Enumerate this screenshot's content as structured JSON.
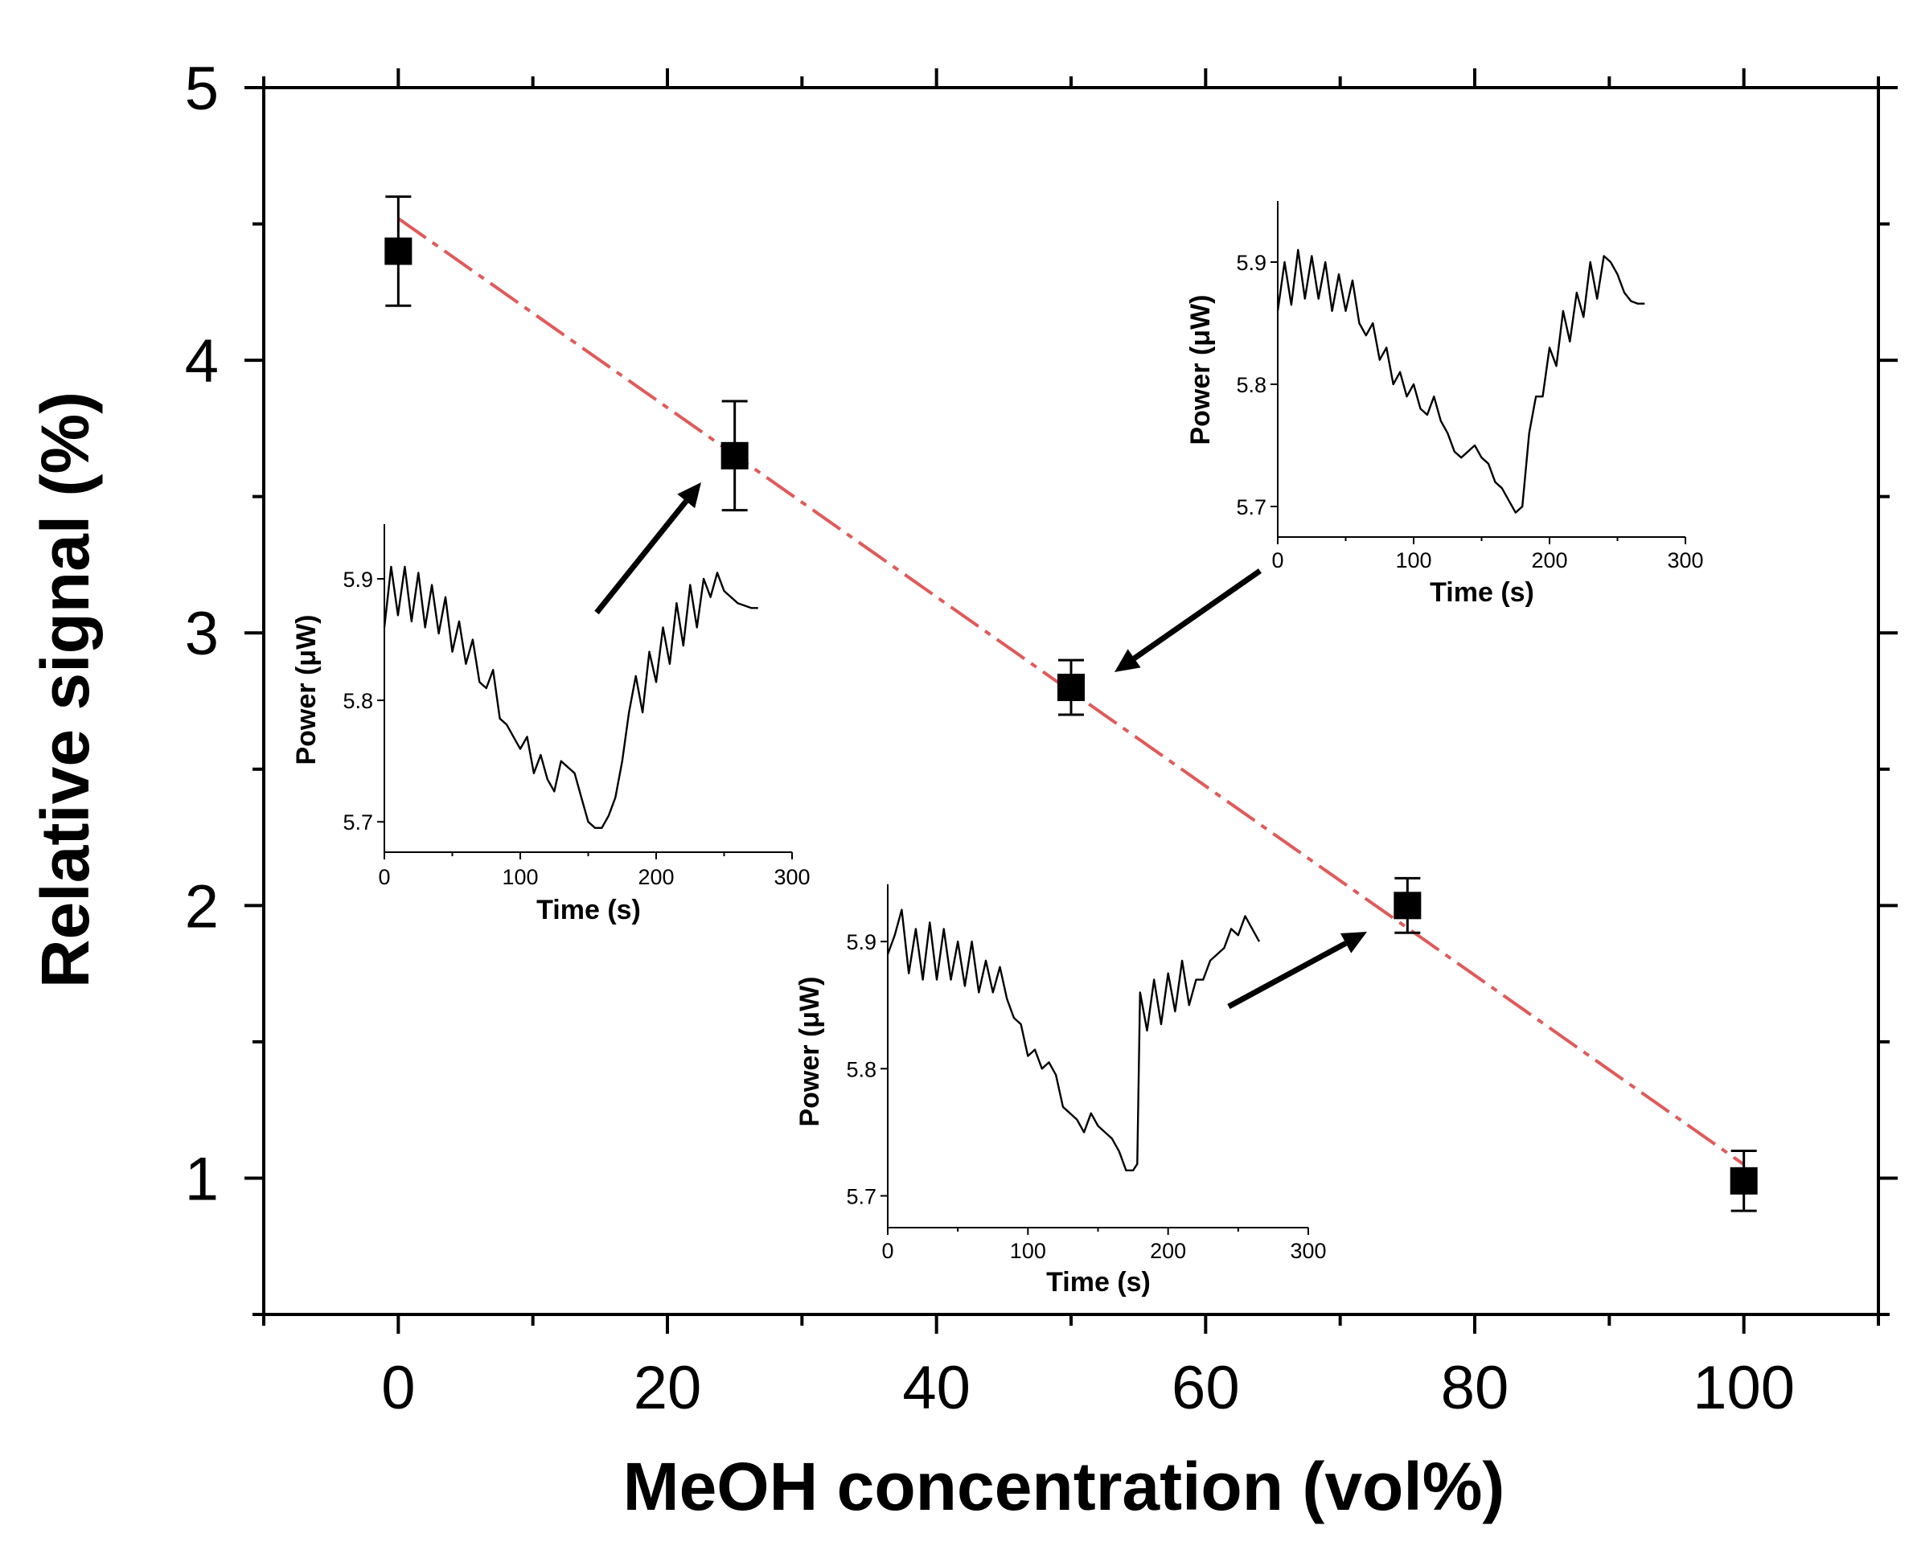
{
  "chart_data": [
    {
      "type": "scatter",
      "xlabel": "MeOH concentration (vol%)",
      "ylabel": "Relative signal (%)",
      "xlim": [
        -10,
        110
      ],
      "ylim": [
        0.5,
        5
      ],
      "xticks": [
        "0",
        "20",
        "40",
        "60",
        "80",
        "100"
      ],
      "yticks": [
        "1",
        "2",
        "3",
        "4",
        "5"
      ],
      "grid": false,
      "series": [
        {
          "x": [
            0,
            25,
            50,
            75,
            100
          ],
          "y": [
            4.4,
            3.65,
            2.8,
            2.0,
            0.99
          ],
          "yerr": [
            0.2,
            0.2,
            0.1,
            0.1,
            0.11
          ],
          "marker": "square",
          "color": "#000000"
        }
      ],
      "fit_line": {
        "x": [
          0,
          100
        ],
        "y": [
          4.52,
          1.05
        ],
        "color": "#e05a5a",
        "style": "dashed"
      },
      "annotations": [
        {
          "arrow_to_x": 25
        },
        {
          "arrow_to_x": 50
        },
        {
          "arrow_to_x": 75
        }
      ]
    },
    {
      "type": "line",
      "inset_for_x": 25,
      "xlabel": "Time (s)",
      "ylabel": "Power (μW)",
      "xlim": [
        0,
        300
      ],
      "ylim": [
        5.675,
        5.945
      ],
      "xticks": [
        "0",
        "100",
        "200",
        "300"
      ],
      "yticks": [
        "5.7",
        "5.8",
        "5.9"
      ],
      "x": [
        0,
        5,
        10,
        15,
        20,
        25,
        30,
        35,
        40,
        45,
        50,
        55,
        60,
        65,
        70,
        75,
        80,
        85,
        90,
        95,
        100,
        105,
        110,
        115,
        120,
        125,
        130,
        135,
        140,
        145,
        150,
        155,
        160,
        165,
        170,
        175,
        180,
        185,
        190,
        195,
        200,
        205,
        210,
        215,
        220,
        225,
        230,
        235,
        240,
        245,
        250,
        255,
        260,
        265,
        270,
        275
      ],
      "y": [
        5.86,
        5.91,
        5.87,
        5.91,
        5.865,
        5.905,
        5.86,
        5.895,
        5.855,
        5.885,
        5.84,
        5.865,
        5.83,
        5.85,
        5.815,
        5.81,
        5.825,
        5.785,
        5.78,
        5.77,
        5.76,
        5.77,
        5.74,
        5.755,
        5.735,
        5.725,
        5.75,
        5.745,
        5.74,
        5.72,
        5.7,
        5.695,
        5.695,
        5.705,
        5.72,
        5.75,
        5.79,
        5.82,
        5.79,
        5.84,
        5.815,
        5.86,
        5.83,
        5.88,
        5.845,
        5.895,
        5.86,
        5.9,
        5.885,
        5.905,
        5.89,
        5.885,
        5.88,
        5.878,
        5.876,
        5.876
      ]
    },
    {
      "type": "line",
      "inset_for_x": 50,
      "xlabel": "Time (s)",
      "ylabel": "Power (μW)",
      "xlim": [
        0,
        300
      ],
      "ylim": [
        5.675,
        5.95
      ],
      "xticks": [
        "0",
        "100",
        "200",
        "300"
      ],
      "yticks": [
        "5.7",
        "5.8",
        "5.9"
      ],
      "x": [
        0,
        5,
        10,
        15,
        20,
        25,
        30,
        35,
        40,
        45,
        50,
        55,
        60,
        65,
        70,
        75,
        80,
        85,
        90,
        95,
        100,
        105,
        110,
        115,
        120,
        125,
        130,
        135,
        140,
        145,
        150,
        155,
        160,
        165,
        170,
        175,
        180,
        185,
        190,
        195,
        200,
        205,
        210,
        215,
        220,
        225,
        230,
        235,
        240,
        245,
        250,
        255,
        260,
        265,
        270
      ],
      "y": [
        5.86,
        5.9,
        5.865,
        5.91,
        5.87,
        5.905,
        5.87,
        5.9,
        5.86,
        5.89,
        5.86,
        5.885,
        5.85,
        5.84,
        5.85,
        5.82,
        5.83,
        5.8,
        5.81,
        5.79,
        5.8,
        5.78,
        5.775,
        5.79,
        5.77,
        5.76,
        5.745,
        5.74,
        5.745,
        5.75,
        5.74,
        5.735,
        5.72,
        5.715,
        5.705,
        5.695,
        5.7,
        5.76,
        5.79,
        5.79,
        5.83,
        5.815,
        5.86,
        5.835,
        5.875,
        5.855,
        5.9,
        5.87,
        5.905,
        5.9,
        5.89,
        5.875,
        5.868,
        5.866,
        5.866
      ]
    },
    {
      "type": "line",
      "inset_for_x": 75,
      "xlabel": "Time (s)",
      "ylabel": "Power (μW)",
      "xlim": [
        0,
        300
      ],
      "ylim": [
        5.675,
        5.945
      ],
      "xticks": [
        "0",
        "100",
        "200",
        "300"
      ],
      "yticks": [
        "5.7",
        "5.8",
        "5.9"
      ],
      "x": [
        0,
        5,
        10,
        15,
        20,
        25,
        30,
        35,
        40,
        45,
        50,
        55,
        60,
        65,
        70,
        75,
        80,
        85,
        90,
        95,
        100,
        105,
        110,
        115,
        120,
        125,
        130,
        135,
        140,
        145,
        150,
        155,
        160,
        165,
        170,
        175,
        178,
        180,
        185,
        190,
        195,
        200,
        205,
        210,
        215,
        220,
        225,
        230,
        235,
        240,
        245,
        250,
        255,
        260,
        265
      ],
      "y": [
        5.89,
        5.905,
        5.925,
        5.875,
        5.91,
        5.87,
        5.915,
        5.87,
        5.91,
        5.87,
        5.9,
        5.865,
        5.9,
        5.86,
        5.885,
        5.86,
        5.88,
        5.855,
        5.84,
        5.835,
        5.81,
        5.815,
        5.8,
        5.805,
        5.795,
        5.77,
        5.765,
        5.76,
        5.75,
        5.765,
        5.755,
        5.75,
        5.745,
        5.735,
        5.72,
        5.72,
        5.725,
        5.86,
        5.83,
        5.87,
        5.835,
        5.875,
        5.845,
        5.885,
        5.85,
        5.87,
        5.87,
        5.885,
        5.89,
        5.895,
        5.91,
        5.905,
        5.92,
        5.91,
        5.9
      ]
    }
  ]
}
